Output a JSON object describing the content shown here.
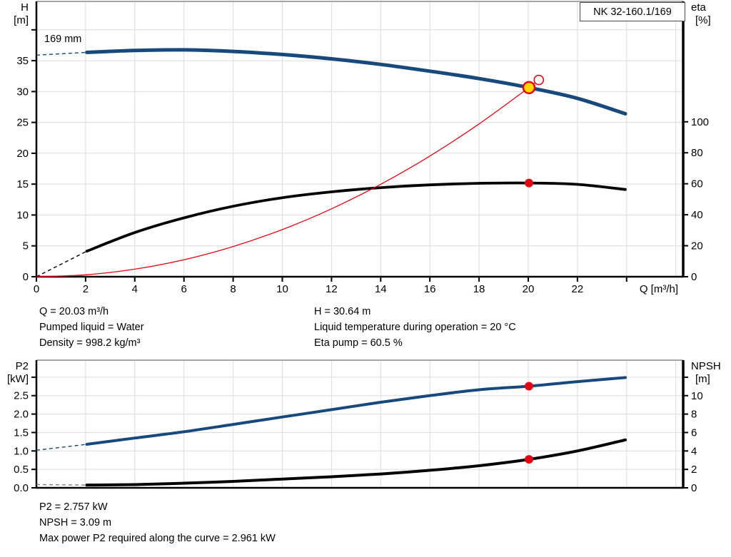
{
  "title_box": {
    "label": "NK 32-160.1/169"
  },
  "annotations": {
    "impeller": "169 mm",
    "mid_left": [
      "Q = 20.03 m³/h",
      "Pumped liquid = Water",
      "Density = 998.2 kg/m³"
    ],
    "mid_right": [
      "H = 30.64 m",
      "Liquid temperature during operation = 20 °C",
      "Eta pump = 60.5 %"
    ],
    "bottom": [
      "P2 = 2.757 kW",
      "NPSH = 3.09 m",
      "Max power P2 required along the curve = 2.961 kW"
    ]
  },
  "colors": {
    "curve_blue": "#17497d",
    "curve_black": "#000000",
    "curve_red": "#e30613",
    "duty_yellow": "#ffd800",
    "grid": "#dcdcdc",
    "frame": "#a6a6a6",
    "axis": "#000000",
    "npsh_dash": "#808080"
  },
  "chart_data": [
    {
      "type": "line",
      "title": "NK 32-160.1/169",
      "x_axis": {
        "label": "Q [m³/h]",
        "min": 0,
        "max": 26.3,
        "grid_step": 2,
        "tick_step": 2,
        "tick_max": 24,
        "ticks": [
          0,
          2,
          4,
          6,
          8,
          10,
          12,
          14,
          16,
          18,
          20,
          22
        ],
        "tick_labels": [
          "0",
          "2",
          "4",
          "6",
          "8",
          "10",
          "12",
          "14",
          "16",
          "18",
          "20",
          "22"
        ]
      },
      "y_left": {
        "label": "H [m]",
        "min": 0,
        "max": 44.6,
        "ticks": [
          0,
          5,
          10,
          15,
          20,
          25,
          30,
          35
        ],
        "tick_labels": [
          "0",
          "5",
          "10",
          "15",
          "20",
          "25",
          "30",
          "35"
        ],
        "unit_tick": 40
      },
      "y_right": {
        "label": "eta [%]",
        "min": 0,
        "max": 177.7,
        "ticks": [
          0,
          20,
          40,
          60,
          80,
          100
        ],
        "tick_labels": [
          "0",
          "20",
          "40",
          "60",
          "80",
          "100"
        ],
        "unit_tick": null
      },
      "series": [
        {
          "name": "head-curve",
          "axis": "left",
          "color": "#17497d",
          "width": 5,
          "dash_lead": [
            [
              0,
              35.9
            ],
            [
              2.05,
              36.35
            ]
          ],
          "points": [
            [
              2.05,
              36.35
            ],
            [
              4,
              36.65
            ],
            [
              6,
              36.75
            ],
            [
              8,
              36.5
            ],
            [
              10,
              36.0
            ],
            [
              12,
              35.3
            ],
            [
              14,
              34.4
            ],
            [
              16,
              33.3
            ],
            [
              18,
              32.1
            ],
            [
              20.03,
              30.64
            ],
            [
              22,
              28.9
            ],
            [
              23.95,
              26.4
            ]
          ]
        },
        {
          "name": "eta-curve",
          "axis": "right",
          "color": "#000000",
          "width": 3.8,
          "dash_lead": [
            [
              0,
              0
            ],
            [
              2.05,
              16.5
            ]
          ],
          "points": [
            [
              2.05,
              16.5
            ],
            [
              4,
              28.5
            ],
            [
              6,
              38.0
            ],
            [
              8,
              45.5
            ],
            [
              10,
              51.0
            ],
            [
              12,
              54.8
            ],
            [
              14,
              57.5
            ],
            [
              16,
              59.3
            ],
            [
              18,
              60.3
            ],
            [
              20.03,
              60.5
            ],
            [
              22,
              59.6
            ],
            [
              23.95,
              56.3
            ]
          ]
        },
        {
          "name": "affinity-curve",
          "axis": "left",
          "color": "#e30613",
          "width": 1.3,
          "dash_lead": null,
          "points": [
            [
              0,
              0
            ],
            [
              2,
              0.31
            ],
            [
              4,
              1.22
            ],
            [
              6,
              2.75
            ],
            [
              8,
              4.89
            ],
            [
              10,
              7.64
            ],
            [
              12,
              11.0
            ],
            [
              14,
              14.97
            ],
            [
              16,
              19.55
            ],
            [
              18,
              24.75
            ],
            [
              20.03,
              30.64
            ],
            [
              20.43,
              31.88
            ]
          ]
        }
      ],
      "markers": [
        {
          "name": "duty-point",
          "x": 20.03,
          "value": 30.64,
          "axis": "left",
          "style": "duty"
        },
        {
          "name": "full-diameter-point",
          "x": 20.43,
          "value": 31.88,
          "axis": "left",
          "style": "open"
        },
        {
          "name": "eta-duty-point",
          "x": 20.03,
          "value": 60.5,
          "axis": "right",
          "style": "dot"
        }
      ]
    },
    {
      "type": "line",
      "title": "",
      "x_axis": {
        "label": "",
        "min": 0,
        "max": 26.3,
        "grid_step": 2,
        "tick_step": 2,
        "tick_max": -1,
        "ticks": [],
        "tick_labels": []
      },
      "y_left": {
        "label": "P2 [kW]",
        "min": 0,
        "max": 3.462,
        "ticks": [
          0,
          0.5,
          1,
          1.5,
          2,
          2.5
        ],
        "tick_labels": [
          "0.0",
          "0.5",
          "1.0",
          "1.5",
          "2.0",
          "2.5"
        ],
        "unit_tick": 3.0
      },
      "y_right": {
        "label": "NPSH [m]",
        "min": 0,
        "max": 13.85,
        "ticks": [
          0,
          2,
          4,
          6,
          8,
          10
        ],
        "tick_labels": [
          "0",
          "2",
          "4",
          "6",
          "8",
          "10"
        ],
        "unit_tick": 12
      },
      "series": [
        {
          "name": "p2-curve",
          "axis": "left",
          "color": "#17497d",
          "width": 4,
          "dash_lead": [
            [
              0,
              1.02
            ],
            [
              2.05,
              1.18
            ]
          ],
          "points": [
            [
              2.05,
              1.18
            ],
            [
              4,
              1.35
            ],
            [
              6,
              1.52
            ],
            [
              8,
              1.72
            ],
            [
              10,
              1.92
            ],
            [
              12,
              2.12
            ],
            [
              14,
              2.32
            ],
            [
              16,
              2.5
            ],
            [
              18,
              2.66
            ],
            [
              20.03,
              2.757
            ],
            [
              22,
              2.88
            ],
            [
              23.95,
              2.99
            ]
          ]
        },
        {
          "name": "npsh-curve",
          "axis": "right",
          "color": "#000000",
          "width": 4,
          "dash_color": "#808080",
          "dash_lead": [
            [
              0,
              0.35
            ],
            [
              2.05,
              0.3
            ]
          ],
          "points": [
            [
              2.05,
              0.3
            ],
            [
              4,
              0.35
            ],
            [
              6,
              0.5
            ],
            [
              8,
              0.7
            ],
            [
              10,
              0.95
            ],
            [
              12,
              1.2
            ],
            [
              14,
              1.5
            ],
            [
              16,
              1.9
            ],
            [
              18,
              2.4
            ],
            [
              20.03,
              3.09
            ],
            [
              22,
              4.0
            ],
            [
              23.95,
              5.2
            ]
          ]
        }
      ],
      "markers": [
        {
          "name": "p2-duty-point",
          "x": 20.03,
          "value": 2.757,
          "axis": "left",
          "style": "dot"
        },
        {
          "name": "npsh-duty-point",
          "x": 20.03,
          "value": 3.09,
          "axis": "right",
          "style": "dot"
        }
      ]
    }
  ]
}
